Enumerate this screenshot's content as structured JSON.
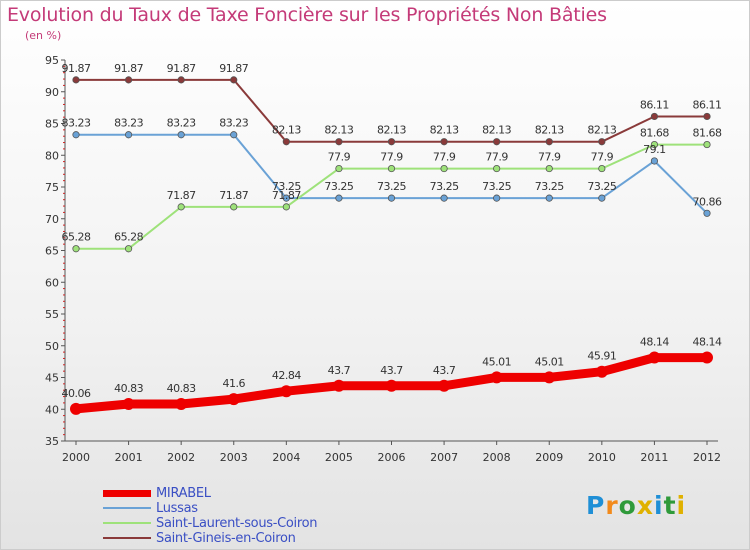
{
  "chart_data": {
    "type": "line",
    "title": "Evolution du Taux de Taxe Foncière sur les Propriétés Non Bâties",
    "subtitle": "(en %)",
    "xlabel": "",
    "ylabel": "(en %)",
    "ylim": [
      35,
      95
    ],
    "yticks": [
      35,
      40,
      45,
      50,
      55,
      60,
      65,
      70,
      75,
      80,
      85,
      90,
      95
    ],
    "grid": false,
    "legend_position": "bottom-left",
    "x": [
      "2000",
      "2001",
      "2002",
      "2003",
      "2004",
      "2005",
      "2006",
      "2007",
      "2008",
      "2009",
      "2010",
      "2011",
      "2012"
    ],
    "series": [
      {
        "name": "MIRABEL",
        "color": "#ee0000",
        "values": [
          40.06,
          40.83,
          40.83,
          41.6,
          42.84,
          43.7,
          43.7,
          43.7,
          45.01,
          45.01,
          45.91,
          48.14,
          48.14
        ],
        "labels": [
          "40.06",
          "40.83",
          "40.83",
          "41.6",
          "42.84",
          "43.7",
          "43.7",
          "43.7",
          "45.01",
          "45.01",
          "45.91",
          "48.14",
          "48.14"
        ]
      },
      {
        "name": "Lussas",
        "color": "#6aa2d6",
        "values": [
          83.23,
          83.23,
          83.23,
          83.23,
          73.25,
          73.25,
          73.25,
          73.25,
          73.25,
          73.25,
          73.25,
          79.1,
          70.86
        ],
        "labels": [
          "83.23",
          "83.23",
          "83.23",
          "83.23",
          "73.25",
          "73.25",
          "73.25",
          "73.25",
          "73.25",
          "73.25",
          "73.25",
          "79.1",
          "70.86"
        ]
      },
      {
        "name": "Saint-Laurent-sous-Coiron",
        "color": "#9ee27a",
        "values": [
          65.28,
          65.28,
          71.87,
          71.87,
          71.87,
          77.9,
          77.9,
          77.9,
          77.9,
          77.9,
          77.9,
          81.68,
          81.68
        ],
        "labels": [
          "65.28",
          "65.28",
          "71.87",
          "71.87",
          "71.87",
          "77.9",
          "77.9",
          "77.9",
          "77.9",
          "77.9",
          "77.9",
          "81.68",
          "81.68"
        ]
      },
      {
        "name": "Saint-Gineis-en-Coiron",
        "color": "#8a3a3a",
        "values": [
          91.87,
          91.87,
          91.87,
          91.87,
          82.13,
          82.13,
          82.13,
          82.13,
          82.13,
          82.13,
          82.13,
          86.11,
          86.11
        ],
        "labels": [
          "91.87",
          "91.87",
          "91.87",
          "91.87",
          "82.13",
          "82.13",
          "82.13",
          "82.13",
          "82.13",
          "82.13",
          "82.13",
          "86.11",
          "86.11"
        ]
      }
    ]
  },
  "legend": {
    "items": [
      "MIRABEL",
      "Lussas",
      "Saint-Laurent-sous-Coiron",
      "Saint-Gineis-en-Coiron"
    ]
  },
  "branding": {
    "logo_text": "Proxiti",
    "logo_colors": [
      "#1f8fd6",
      "#f28a1c",
      "#2f9a3a",
      "#e0b100",
      "#1f8fd6",
      "#2f9a3a",
      "#e0b100"
    ]
  }
}
